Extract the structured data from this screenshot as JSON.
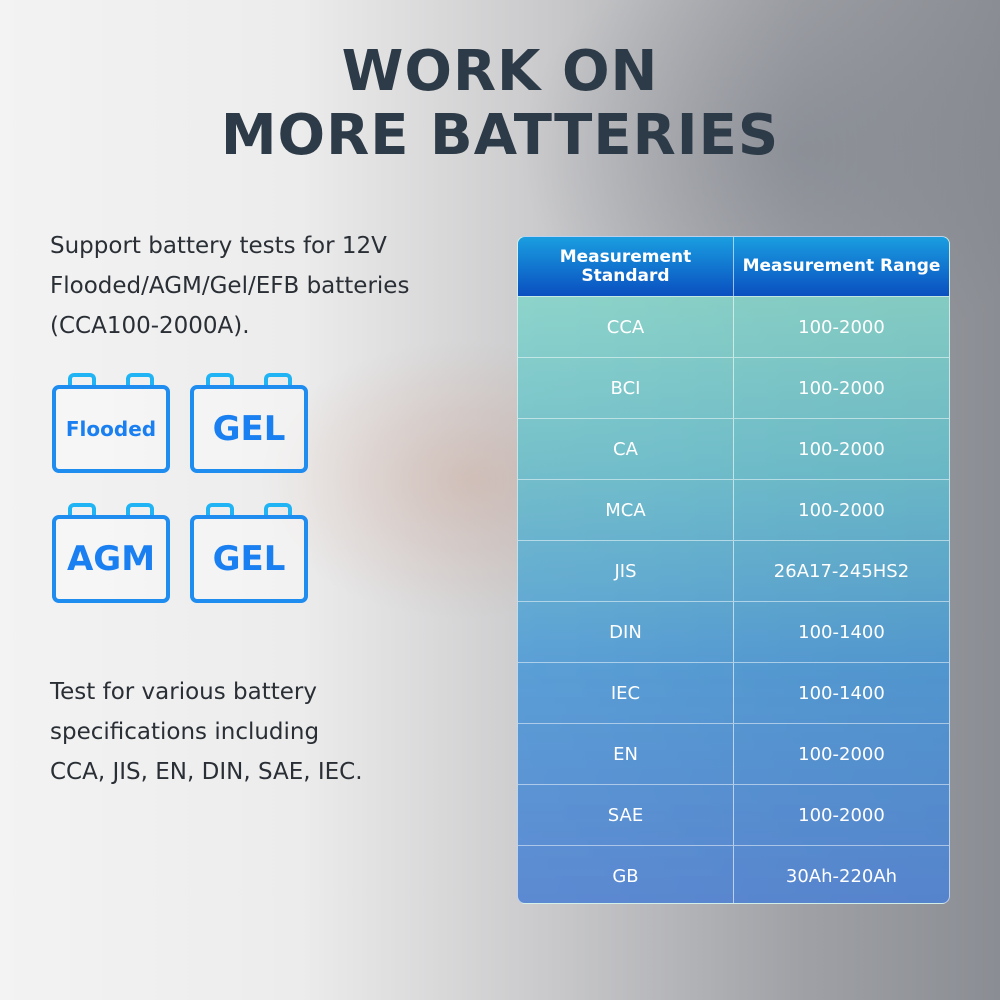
{
  "title": {
    "line1": "WORK ON",
    "line2": "MORE BATTERIES"
  },
  "description1": [
    "Support battery tests for 12V",
    "Flooded/AGM/Gel/EFB batteries",
    "(CCA100-2000A)."
  ],
  "batteries": [
    {
      "label": "Flooded"
    },
    {
      "label": "GEL"
    },
    {
      "label": "AGM"
    },
    {
      "label": "GEL"
    }
  ],
  "description2": [
    "Test for various battery",
    "specifications including",
    "CCA, JIS, EN, DIN, SAE, IEC."
  ],
  "table": {
    "headers": [
      "Measurement Standard",
      "Measurement Range"
    ],
    "rows": [
      [
        "CCA",
        "100-2000"
      ],
      [
        "BCI",
        "100-2000"
      ],
      [
        "CA",
        "100-2000"
      ],
      [
        "MCA",
        "100-2000"
      ],
      [
        "JIS",
        "26A17-245HS2"
      ],
      [
        "DIN",
        "100-1400"
      ],
      [
        "IEC",
        "100-1400"
      ],
      [
        "EN",
        "100-2000"
      ],
      [
        "SAE",
        "100-2000"
      ],
      [
        "GB",
        "30Ah-220Ah"
      ]
    ]
  },
  "colors": {
    "title": "#2d3a47",
    "icon_blue": "#1f8cf0",
    "header_blue": "#0a4fc0"
  }
}
